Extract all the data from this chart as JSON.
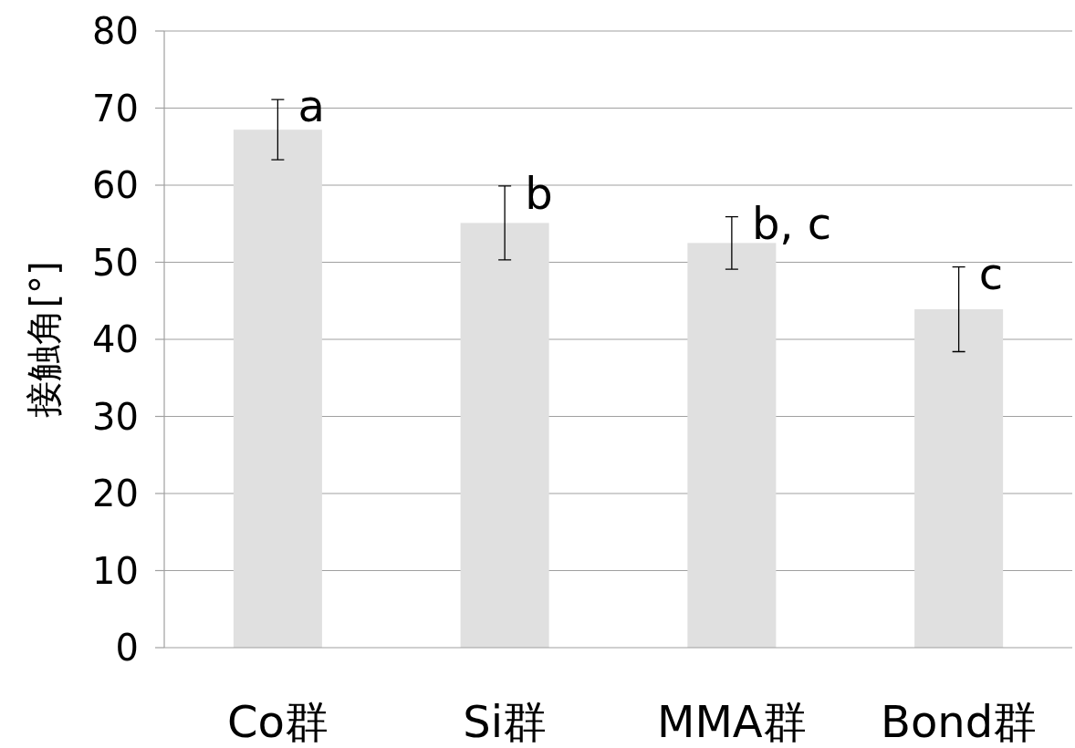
{
  "chart_data": {
    "type": "bar",
    "ylabel": "接触角[°]",
    "categories": [
      "Co群",
      "Si群",
      "MMA群",
      "Bond群"
    ],
    "values": [
      67.2,
      55.1,
      52.5,
      43.9
    ],
    "errors": [
      3.9,
      4.8,
      3.4,
      5.5
    ],
    "color": "#e0e0e0",
    "ylim": [
      0,
      80
    ],
    "yticks": [
      0,
      10,
      20,
      30,
      40,
      50,
      60,
      70,
      80
    ],
    "grid": "y",
    "annotations": [
      {
        "text": "a",
        "x": "Co群",
        "y": 71.2
      },
      {
        "text": "b",
        "x": "Si群",
        "y": 59.9
      },
      {
        "text": "b, c",
        "x": "MMA群",
        "y": 56.0
      },
      {
        "text": "c",
        "x": "Bond群",
        "y": 49.5
      }
    ]
  }
}
